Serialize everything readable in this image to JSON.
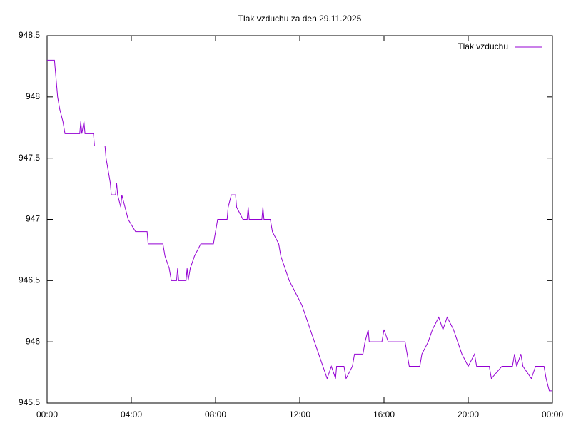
{
  "chart_data": {
    "type": "line",
    "title": "Tlak vzduchu za den 29.11.2025",
    "legend": "top-right",
    "xlim": [
      0,
      24
    ],
    "xticks": [
      {
        "value": 0,
        "label": "00:00"
      },
      {
        "value": 4,
        "label": "04:00"
      },
      {
        "value": 8,
        "label": "08:00"
      },
      {
        "value": 12,
        "label": "12:00"
      },
      {
        "value": 16,
        "label": "16:00"
      },
      {
        "value": 20,
        "label": "20:00"
      },
      {
        "value": 24,
        "label": "00:00"
      }
    ],
    "ylim": [
      945.5,
      948.5
    ],
    "yticks": [
      945.5,
      946,
      946.5,
      947,
      947.5,
      948,
      948.5
    ],
    "x": [
      0,
      0.35,
      0.4,
      0.45,
      0.5,
      0.6,
      0.75,
      0.85,
      1.55,
      1.6,
      1.65,
      1.75,
      1.8,
      2.2,
      2.25,
      2.75,
      2.8,
      2.9,
      3.0,
      3.05,
      3.25,
      3.3,
      3.35,
      3.5,
      3.55,
      3.7,
      3.85,
      4.2,
      4.75,
      4.8,
      5.5,
      5.6,
      5.8,
      5.9,
      6.15,
      6.2,
      6.25,
      6.6,
      6.65,
      6.7,
      6.8,
      7.0,
      7.3,
      7.9,
      8.0,
      8.1,
      8.55,
      8.6,
      8.75,
      8.95,
      9.0,
      9.3,
      9.5,
      9.55,
      9.6,
      10.2,
      10.25,
      10.3,
      10.6,
      10.7,
      11.0,
      11.1,
      11.3,
      11.5,
      11.8,
      12.1,
      12.3,
      12.5,
      12.7,
      12.9,
      13.1,
      13.3,
      13.5,
      13.7,
      13.75,
      14.1,
      14.2,
      14.5,
      14.6,
      15.0,
      15.1,
      15.25,
      15.3,
      15.9,
      16.0,
      16.2,
      17.0,
      17.1,
      17.2,
      17.7,
      17.8,
      18.1,
      18.3,
      18.6,
      18.8,
      19.0,
      19.3,
      19.5,
      19.7,
      20.0,
      20.3,
      20.4,
      21.0,
      21.1,
      21.6,
      22.1,
      22.2,
      22.3,
      22.5,
      22.6,
      23.0,
      23.2,
      23.6,
      23.7,
      23.85,
      24.0
    ],
    "series": [
      {
        "name": "Tlak vzduchu",
        "color": "#9400d3",
        "values": [
          948.3,
          948.3,
          948.2,
          948.1,
          948.0,
          947.9,
          947.8,
          947.7,
          947.7,
          947.8,
          947.7,
          947.8,
          947.7,
          947.7,
          947.6,
          947.6,
          947.5,
          947.4,
          947.3,
          947.2,
          947.2,
          947.3,
          947.2,
          947.1,
          947.2,
          947.1,
          947.0,
          946.9,
          946.9,
          946.8,
          946.8,
          946.7,
          946.6,
          946.5,
          946.5,
          946.6,
          946.5,
          946.5,
          946.6,
          946.5,
          946.6,
          946.7,
          946.8,
          946.8,
          946.9,
          947.0,
          947.0,
          947.1,
          947.2,
          947.2,
          947.1,
          947.0,
          947.0,
          947.1,
          947.0,
          947.0,
          947.1,
          947.0,
          947.0,
          946.9,
          946.8,
          946.7,
          946.6,
          946.5,
          946.4,
          946.3,
          946.2,
          946.1,
          946.0,
          945.9,
          945.8,
          945.7,
          945.8,
          945.7,
          945.8,
          945.8,
          945.7,
          945.8,
          945.9,
          945.9,
          946.0,
          946.1,
          946.0,
          946.0,
          946.1,
          946.0,
          946.0,
          945.9,
          945.8,
          945.8,
          945.9,
          946.0,
          946.1,
          946.2,
          946.1,
          946.2,
          946.1,
          946.0,
          945.9,
          945.8,
          945.9,
          945.8,
          945.8,
          945.7,
          945.8,
          945.8,
          945.9,
          945.8,
          945.9,
          945.8,
          945.7,
          945.8,
          945.8,
          945.7,
          945.6,
          945.6
        ]
      }
    ]
  }
}
